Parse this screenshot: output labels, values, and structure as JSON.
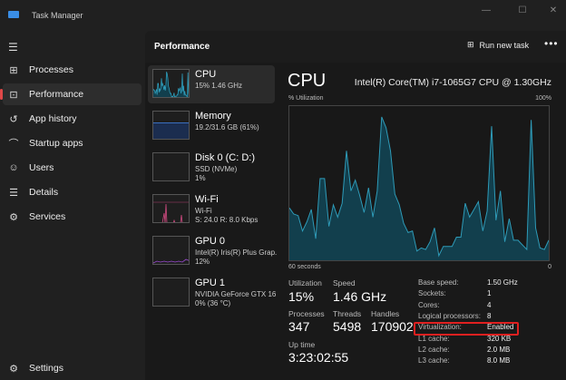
{
  "window": {
    "title": "Task Manager"
  },
  "sidebar": {
    "items": [
      {
        "label": "Processes",
        "icon": "processes-icon",
        "glyph": "⊞"
      },
      {
        "label": "Performance",
        "icon": "performance-icon",
        "glyph": "⊡",
        "active": true
      },
      {
        "label": "App history",
        "icon": "history-icon",
        "glyph": "↺"
      },
      {
        "label": "Startup apps",
        "icon": "startup-icon",
        "glyph": "⌒"
      },
      {
        "label": "Users",
        "icon": "users-icon",
        "glyph": "☺"
      },
      {
        "label": "Details",
        "icon": "details-icon",
        "glyph": "☰"
      },
      {
        "label": "Services",
        "icon": "services-icon",
        "glyph": "⚙"
      }
    ],
    "settings": "Settings"
  },
  "header": {
    "title": "Performance",
    "run_new_task": "Run new task"
  },
  "devices": [
    {
      "name": "CPU",
      "sub1": "15%  1.46 GHz",
      "sub2": ""
    },
    {
      "name": "Memory",
      "sub1": "19.2/31.6 GB (61%)",
      "sub2": ""
    },
    {
      "name": "Disk 0 (C: D:)",
      "sub1": "SSD (NVMe)",
      "sub2": "1%"
    },
    {
      "name": "Wi-Fi",
      "sub1": "Wi-Fi",
      "sub2": "S: 24.0  R: 8.0 Kbps"
    },
    {
      "name": "GPU 0",
      "sub1": "Intel(R) Iris(R) Plus Grap.",
      "sub2": "12%"
    },
    {
      "name": "GPU 1",
      "sub1": "NVIDIA GeForce GTX 16",
      "sub2": "0%  (36 °C)"
    }
  ],
  "cpu": {
    "title": "CPU",
    "model": "Intel(R) Core(TM) i7-1065G7 CPU @ 1.30GHz",
    "y_label": "% Utilization",
    "y_max_label": "100%",
    "x_label": "60 seconds",
    "x_min_label": "0",
    "utilization_label": "Utilization",
    "utilization": "15%",
    "speed_label": "Speed",
    "speed": "1.46 GHz",
    "processes_label": "Processes",
    "processes": "347",
    "threads_label": "Threads",
    "threads": "5498",
    "handles_label": "Handles",
    "handles": "170902",
    "uptime_label": "Up time",
    "uptime": "3:23:02:55",
    "specs": [
      [
        "Base speed:",
        "1.50 GHz"
      ],
      [
        "Sockets:",
        "1"
      ],
      [
        "Cores:",
        "4"
      ],
      [
        "Logical processors:",
        "8"
      ],
      [
        "Virtualization:",
        "Enabled"
      ],
      [
        "L1 cache:",
        "320 KB"
      ],
      [
        "L2 cache:",
        "2.0 MB"
      ],
      [
        "L3 cache:",
        "8.0 MB"
      ]
    ]
  },
  "colors": {
    "cpu_line": "#2e9bb8",
    "cpu_fill": "#123f4d",
    "highlight": "#e02020",
    "accent": "#e04848"
  },
  "chart_data": {
    "type": "area",
    "xlabel": "60 seconds",
    "ylabel": "% Utilization",
    "ylim": [
      0,
      100
    ],
    "xlim": [
      60,
      0
    ],
    "grid": false,
    "values": [
      34,
      30,
      29,
      19,
      25,
      33,
      14,
      53,
      53,
      22,
      36,
      28,
      37,
      71,
      45,
      52,
      42,
      31,
      47,
      28,
      45,
      93,
      86,
      71,
      43,
      36,
      24,
      18,
      19,
      6,
      8,
      7,
      12,
      21,
      3,
      9,
      9,
      9,
      15,
      15,
      37,
      28,
      33,
      38,
      19,
      32,
      87,
      26,
      45,
      12,
      27,
      13,
      13,
      10,
      7,
      91,
      21,
      8,
      7,
      13
    ]
  }
}
